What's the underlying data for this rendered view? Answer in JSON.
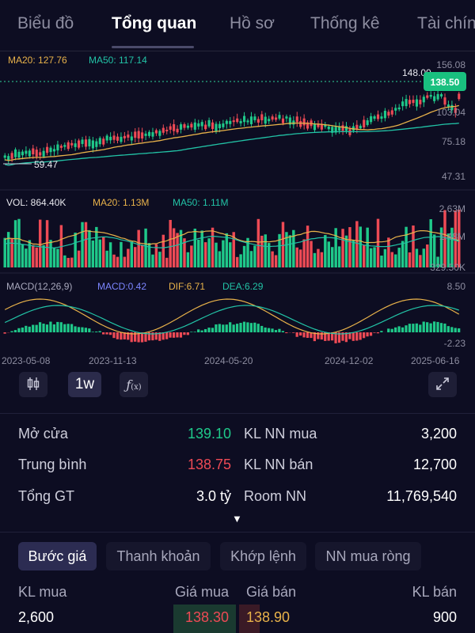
{
  "tabs": [
    {
      "label": "Biểu đồ",
      "active": false
    },
    {
      "label": "Tổng quan",
      "active": true
    },
    {
      "label": "Hồ sơ",
      "active": false
    },
    {
      "label": "Thống kê",
      "active": false
    },
    {
      "label": "Tài chính",
      "active": false
    }
  ],
  "price_panel": {
    "ma20_label": "MA20: 127.76",
    "ma50_label": "MA50: 117.14",
    "y_ticks": [
      "156.08",
      "103.04",
      "75.18",
      "47.31"
    ],
    "high_marker": "148.00",
    "low_marker": "59.47",
    "current_price": "138.50"
  },
  "volume_panel": {
    "vol_label": "VOL: 864.40K",
    "ma20_label": "MA20: 1.13M",
    "ma50_label": "MA50: 1.11M",
    "y_ticks": [
      "2.63M",
      "1.48M",
      "329.50K"
    ]
  },
  "macd_panel": {
    "macd_title": "MACD(12,26,9)",
    "macd_label": "MACD:0.42",
    "dif_label": "DIF:6.71",
    "dea_label": "DEA:6.29",
    "y_ticks": [
      "8.50",
      "-2.23"
    ]
  },
  "x_axis": [
    "2023-05-08",
    "2023-11-13",
    "2024-05-20",
    "2024-12-02",
    "2025-06-16"
  ],
  "toolbar": {
    "candle_icon": "candlestick-icon",
    "interval": "1w",
    "indicator_icon": "function-icon",
    "expand_icon": "expand-icon"
  },
  "stats": {
    "open_label": "Mở cửa",
    "open_value": "139.10",
    "avg_label": "Trung bình",
    "avg_value": "138.75",
    "total_label": "Tổng GT",
    "total_value": "3.0 tỷ",
    "foreign_buy_label": "KL NN mua",
    "foreign_buy_value": "3,200",
    "foreign_sell_label": "KL NN bán",
    "foreign_sell_value": "12,700",
    "room_label": "Room NN",
    "room_value": "11,769,540",
    "expand_glyph": "▼"
  },
  "bottom_tabs": [
    {
      "label": "Bước giá",
      "active": true
    },
    {
      "label": "Thanh khoản",
      "active": false
    },
    {
      "label": "Khớp lệnh",
      "active": false
    },
    {
      "label": "NN mua ròng",
      "active": false
    }
  ],
  "order_book": {
    "col_buy_vol": "KL mua",
    "col_buy_price": "Giá mua",
    "col_sell_price": "Giá bán",
    "col_sell_vol": "KL bán",
    "rows": [
      {
        "buy_vol": "2,600",
        "buy_price": "138.30",
        "sell_price": "138.90",
        "sell_vol": "900"
      }
    ]
  },
  "colors": {
    "up": "#1fc98a",
    "down": "#ee4a55",
    "ma20": "#e8b24a",
    "ma50": "#22c3a6",
    "macd": "#7c86ff",
    "bg": "#0d0d22"
  }
}
